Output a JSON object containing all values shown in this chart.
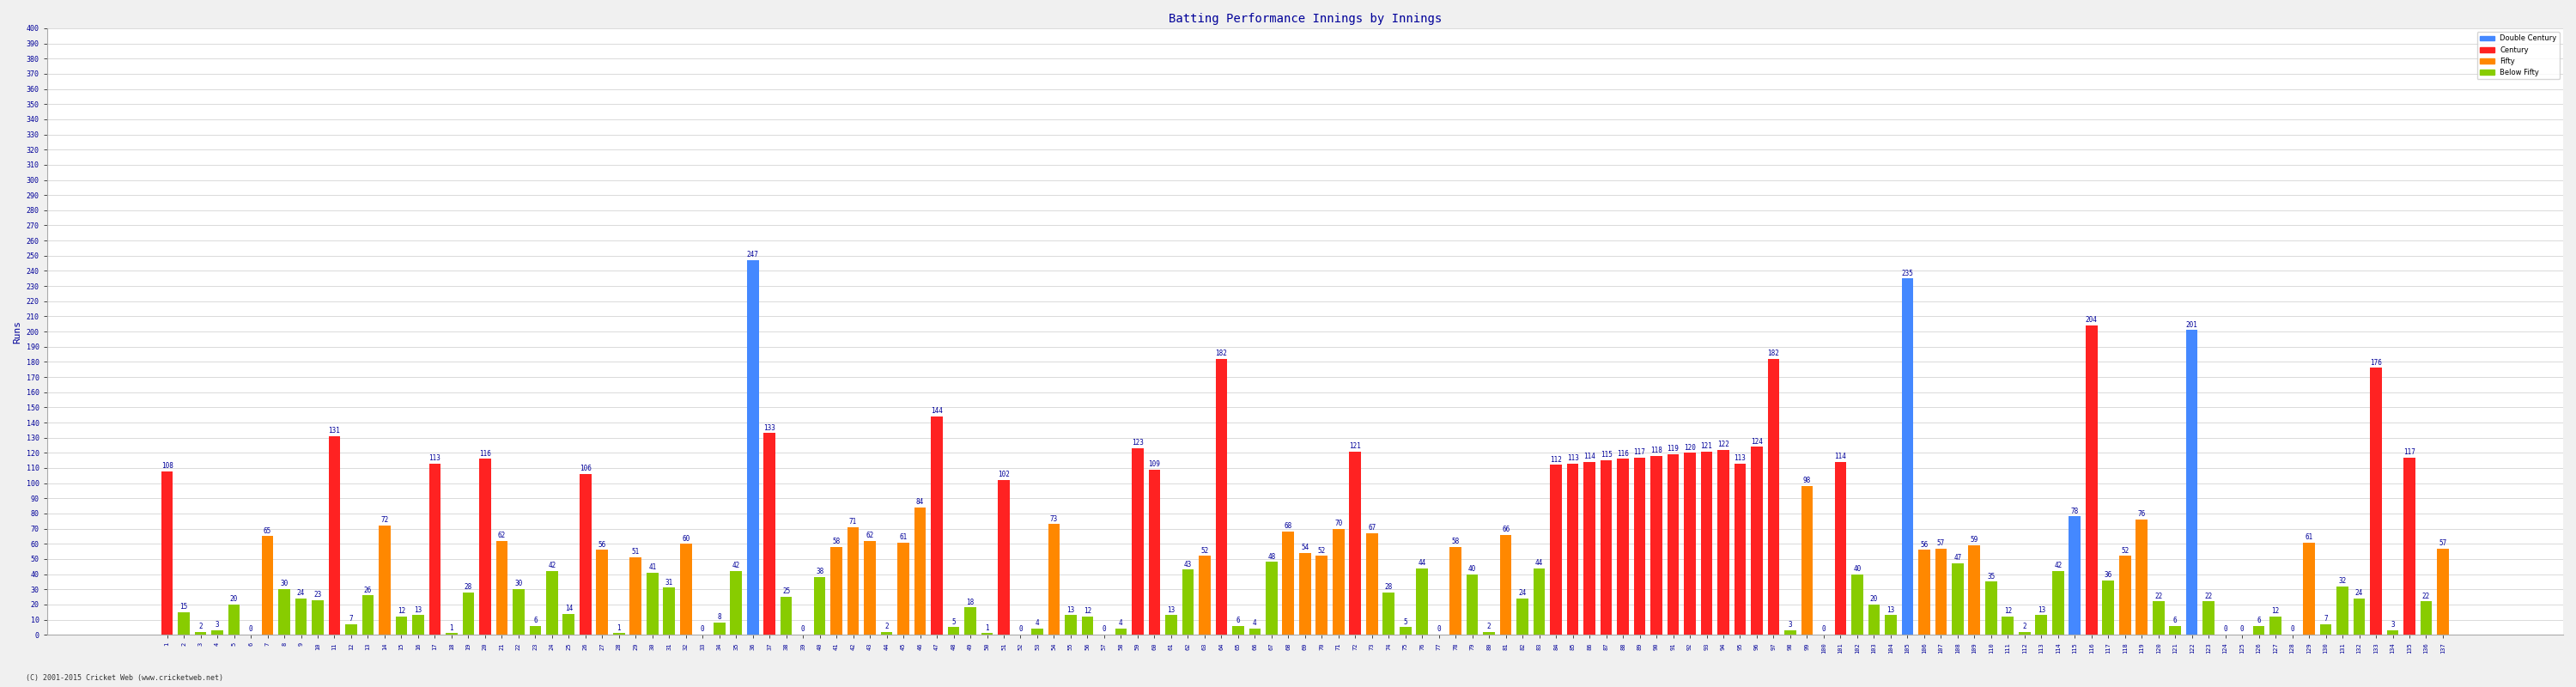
{
  "innings": [
    1,
    2,
    3,
    4,
    5,
    6,
    7,
    8,
    9,
    10,
    11,
    12,
    13,
    14,
    15,
    16,
    17,
    18,
    19,
    20,
    21,
    22,
    23,
    24,
    25,
    26,
    27,
    28,
    29,
    30,
    31,
    32,
    33,
    34,
    35,
    36,
    37,
    38,
    39,
    40,
    41,
    42,
    43,
    44,
    45,
    46,
    47,
    48,
    49,
    50,
    51,
    52,
    53,
    54,
    55,
    56,
    57,
    58,
    59,
    60,
    61,
    62,
    63,
    64,
    65,
    66,
    67,
    68,
    69,
    70,
    71,
    72,
    73,
    74,
    75,
    76,
    77,
    78,
    79,
    80,
    81,
    82,
    83,
    84,
    85,
    86,
    87,
    88,
    89,
    90,
    91,
    92,
    93,
    94,
    95,
    96,
    97,
    98,
    99,
    100,
    101,
    102,
    103,
    104,
    105,
    106,
    107,
    108,
    109,
    110,
    111,
    112,
    113,
    114,
    115,
    116,
    117,
    118,
    119,
    120,
    121,
    122,
    123,
    124,
    125,
    126,
    127,
    128,
    129,
    130,
    131,
    132,
    133,
    134,
    135,
    136,
    137
  ],
  "scores": [
    108,
    15,
    2,
    3,
    20,
    0,
    65,
    30,
    24,
    23,
    131,
    7,
    26,
    72,
    12,
    13,
    113,
    1,
    28,
    116,
    62,
    30,
    6,
    42,
    14,
    106,
    56,
    1,
    51,
    41,
    31,
    60,
    0,
    8,
    42,
    247,
    133,
    25,
    0,
    38,
    58,
    71,
    62,
    2,
    61,
    84,
    144,
    5,
    18,
    1,
    102,
    0,
    4,
    73,
    13,
    12,
    0,
    4,
    123,
    109,
    13,
    43,
    52,
    182,
    6,
    4,
    48,
    68,
    54,
    52,
    70,
    121,
    67,
    28,
    5,
    44,
    0,
    58,
    40,
    2,
    66,
    24,
    44,
    112,
    113,
    114,
    115,
    116,
    117,
    118,
    119,
    120,
    121,
    122,
    113,
    124,
    182,
    3,
    98,
    0,
    114,
    40,
    20,
    13,
    235,
    56,
    57,
    47,
    59,
    35,
    12,
    2,
    13,
    42,
    78,
    204,
    36,
    52,
    76,
    22,
    6,
    201,
    22,
    0,
    0,
    6,
    12,
    0,
    61,
    7,
    32,
    24,
    176,
    3,
    117,
    22,
    57
  ],
  "title": "Batting Performance Innings by Innings",
  "ylabel": "Runs",
  "footer": "(C) 2001-2015 Cricket Web (www.cricketweb.net)",
  "bg_color": "#f0f0f0",
  "plot_bg": "#ffffff",
  "grid_color": "#cccccc",
  "color_100plus_blue": "#4488ff",
  "color_100plus_red": "#ff2222",
  "color_50to99_orange": "#ff8800",
  "color_below50_green": "#88cc00",
  "blue_innings": [
    36,
    105,
    115,
    122
  ],
  "label_color": "#000099",
  "tick_color": "#000099",
  "title_color": "#000099",
  "ylim_max": 400,
  "ytick_step": 10
}
